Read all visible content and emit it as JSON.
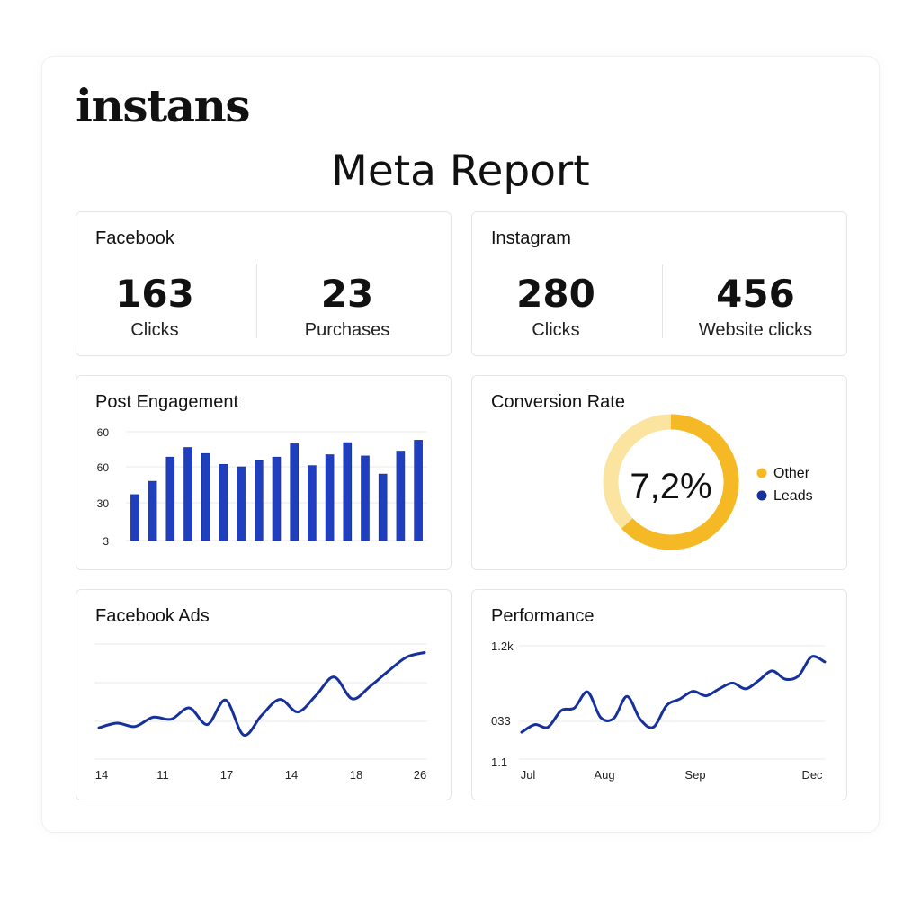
{
  "brand": "instans",
  "report_title": "Meta Report",
  "colors": {
    "blue": "#1f3fbf",
    "dark_blue": "#16309c",
    "gold": "#f6b926",
    "light_gold": "#fbe3a0",
    "grid": "#e8e8e8"
  },
  "facebook": {
    "title": "Facebook",
    "stats": [
      {
        "value": "163",
        "label": "Clicks"
      },
      {
        "value": "23",
        "label": "Purchases"
      }
    ]
  },
  "instagram": {
    "title": "Instagram",
    "stats": [
      {
        "value": "280",
        "label": "Clicks"
      },
      {
        "value": "456",
        "label": "Website clicks"
      }
    ]
  },
  "post_engagement": {
    "title": "Post Engagement",
    "chart_data": {
      "type": "bar",
      "y_tick_labels": [
        "60",
        "60",
        "30",
        "3"
      ],
      "values": [
        38,
        49,
        69,
        77,
        72,
        63,
        61,
        66,
        69,
        80,
        62,
        71,
        81,
        70,
        55,
        74,
        83
      ],
      "ylim": [
        0,
        90
      ],
      "grid": true
    }
  },
  "conversion_rate": {
    "title": "Conversion Rate",
    "center_label": "7,2%",
    "chart_data": {
      "type": "pie",
      "slices": [
        {
          "name": "Other",
          "value": 63
        },
        {
          "name": "Leads",
          "value": 37
        }
      ],
      "legend": [
        "Other",
        "Leads"
      ],
      "legend_placement": "right"
    }
  },
  "facebook_ads": {
    "title": "Facebook Ads",
    "chart_data": {
      "type": "line",
      "x_tick_labels": [
        "14",
        "11",
        "17",
        "14",
        "18",
        "26"
      ],
      "values": [
        3,
        10,
        5,
        19,
        16,
        33,
        8,
        45,
        -8,
        22,
        46,
        27,
        52,
        80,
        47,
        66,
        89,
        110,
        117
      ],
      "ylim": [
        -20,
        130
      ],
      "grid": true
    }
  },
  "performance": {
    "title": "Performance",
    "chart_data": {
      "type": "line",
      "y_tick_labels": [
        "1.2k",
        "033",
        "1.1"
      ],
      "x_tick_labels": [
        "Jul",
        "Aug",
        "Sep",
        "Dec"
      ],
      "values": [
        32,
        44,
        40,
        66,
        70,
        95,
        55,
        54,
        88,
        52,
        40,
        74,
        84,
        96,
        89,
        100,
        109,
        100,
        113,
        128,
        115,
        120,
        150,
        142
      ],
      "ylim": [
        -10,
        170
      ],
      "grid": true
    }
  }
}
